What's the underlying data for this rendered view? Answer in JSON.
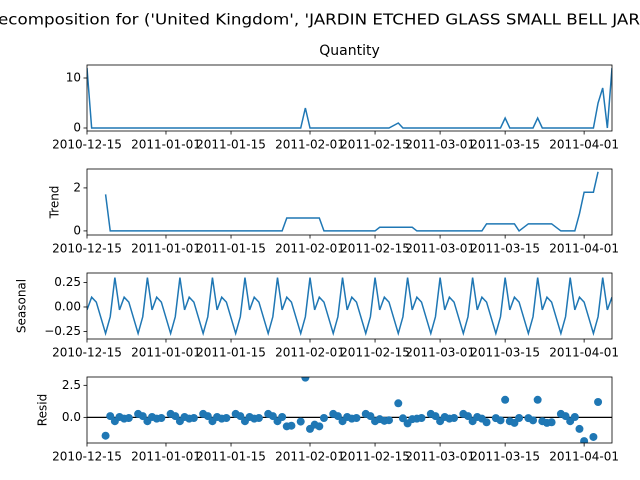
{
  "title": "ecomposition for ('United Kingdom', 'JARDIN ETCHED GLASS SMALL BELL JAR",
  "chart_data": [
    {
      "type": "line",
      "title": "Quantity",
      "color": "#1f77b4",
      "x": [
        "2010-12-15",
        "2010-12-16",
        "2010-12-17",
        "2010-12-19",
        "2010-12-20",
        "2010-12-21",
        "2010-12-22",
        "2010-12-23",
        "2010-12-24",
        "2010-12-26",
        "2010-12-27",
        "2010-12-28",
        "2010-12-29",
        "2010-12-30",
        "2010-12-31",
        "2011-01-02",
        "2011-01-03",
        "2011-01-04",
        "2011-01-05",
        "2011-01-06",
        "2011-01-07",
        "2011-01-09",
        "2011-01-10",
        "2011-01-11",
        "2011-01-12",
        "2011-01-13",
        "2011-01-14",
        "2011-01-16",
        "2011-01-17",
        "2011-01-18",
        "2011-01-19",
        "2011-01-20",
        "2011-01-21",
        "2011-01-23",
        "2011-01-24",
        "2011-01-25",
        "2011-01-26",
        "2011-01-27",
        "2011-01-28",
        "2011-01-30",
        "2011-01-31",
        "2011-02-01",
        "2011-02-02",
        "2011-02-03",
        "2011-02-04",
        "2011-02-06",
        "2011-02-07",
        "2011-02-08",
        "2011-02-09",
        "2011-02-10",
        "2011-02-11",
        "2011-02-13",
        "2011-02-14",
        "2011-02-15",
        "2011-02-16",
        "2011-02-17",
        "2011-02-18",
        "2011-02-20",
        "2011-02-21",
        "2011-02-22",
        "2011-02-23",
        "2011-02-24",
        "2011-02-25",
        "2011-02-27",
        "2011-02-28",
        "2011-03-01",
        "2011-03-02",
        "2011-03-03",
        "2011-03-04",
        "2011-03-06",
        "2011-03-07",
        "2011-03-08",
        "2011-03-09",
        "2011-03-10",
        "2011-03-11",
        "2011-03-13",
        "2011-03-14",
        "2011-03-15",
        "2011-03-16",
        "2011-03-17",
        "2011-03-18",
        "2011-03-20",
        "2011-03-21",
        "2011-03-22",
        "2011-03-23",
        "2011-03-24",
        "2011-03-25",
        "2011-03-27",
        "2011-03-28",
        "2011-03-29",
        "2011-03-30",
        "2011-03-31",
        "2011-04-01",
        "2011-04-03",
        "2011-04-04",
        "2011-04-05",
        "2011-04-06",
        "2011-04-07"
      ],
      "values": [
        12,
        0,
        0,
        0,
        0,
        0,
        0,
        0,
        0,
        0,
        0,
        0,
        0,
        0,
        0,
        0,
        0,
        0,
        0,
        0,
        0,
        0,
        0,
        0,
        0,
        0,
        0,
        0,
        0,
        0,
        0,
        0,
        0,
        0,
        0,
        0,
        0,
        0,
        0,
        0,
        4,
        0,
        0,
        0,
        0,
        0,
        0,
        0,
        0,
        0,
        0,
        0,
        0,
        0,
        0,
        0,
        0,
        1,
        0,
        0,
        0,
        0,
        0,
        0,
        0,
        0,
        0,
        0,
        0,
        0,
        0,
        0,
        0,
        0,
        0,
        0,
        0,
        2,
        0,
        0,
        0,
        0,
        0,
        2,
        0,
        0,
        0,
        0,
        0,
        0,
        0,
        0,
        0,
        0,
        5,
        8,
        0,
        12
      ],
      "xlim": [
        "2010-12-15",
        "2011-04-07"
      ],
      "xticks": [
        "2010-12-15",
        "2011-01-01",
        "2011-01-15",
        "2011-02-01",
        "2011-02-15",
        "2011-03-01",
        "2011-03-15",
        "2011-04-01"
      ],
      "ylim": [
        -0.6,
        12.6
      ],
      "yticks": [
        0,
        10
      ]
    },
    {
      "type": "line",
      "ylabel": "Trend",
      "color": "#1f77b4",
      "x": [
        "2010-12-15",
        "2010-12-16",
        "2010-12-17",
        "2010-12-19",
        "2010-12-20",
        "2010-12-21",
        "2010-12-22",
        "2010-12-23",
        "2010-12-24",
        "2010-12-26",
        "2010-12-27",
        "2010-12-28",
        "2010-12-29",
        "2010-12-30",
        "2010-12-31",
        "2011-01-02",
        "2011-01-03",
        "2011-01-04",
        "2011-01-05",
        "2011-01-06",
        "2011-01-07",
        "2011-01-09",
        "2011-01-10",
        "2011-01-11",
        "2011-01-12",
        "2011-01-13",
        "2011-01-14",
        "2011-01-16",
        "2011-01-17",
        "2011-01-18",
        "2011-01-19",
        "2011-01-20",
        "2011-01-21",
        "2011-01-23",
        "2011-01-24",
        "2011-01-25",
        "2011-01-26",
        "2011-01-27",
        "2011-01-28",
        "2011-01-30",
        "2011-01-31",
        "2011-02-01",
        "2011-02-02",
        "2011-02-03",
        "2011-02-04",
        "2011-02-06",
        "2011-02-07",
        "2011-02-08",
        "2011-02-09",
        "2011-02-10",
        "2011-02-11",
        "2011-02-13",
        "2011-02-14",
        "2011-02-15",
        "2011-02-16",
        "2011-02-17",
        "2011-02-18",
        "2011-02-20",
        "2011-02-21",
        "2011-02-22",
        "2011-02-23",
        "2011-02-24",
        "2011-02-25",
        "2011-02-27",
        "2011-02-28",
        "2011-03-01",
        "2011-03-02",
        "2011-03-03",
        "2011-03-04",
        "2011-03-06",
        "2011-03-07",
        "2011-03-08",
        "2011-03-09",
        "2011-03-10",
        "2011-03-11",
        "2011-03-13",
        "2011-03-14",
        "2011-03-15",
        "2011-03-16",
        "2011-03-17",
        "2011-03-18",
        "2011-03-20",
        "2011-03-21",
        "2011-03-22",
        "2011-03-23",
        "2011-03-24",
        "2011-03-25",
        "2011-03-27",
        "2011-03-28",
        "2011-03-29",
        "2011-03-30",
        "2011-03-31",
        "2011-04-01",
        "2011-04-03",
        "2011-04-04",
        "2011-04-05",
        "2011-04-06",
        "2011-04-07"
      ],
      "values": [
        null,
        null,
        null,
        1.7,
        0,
        0,
        0,
        0,
        0,
        0,
        0,
        0,
        0,
        0,
        0,
        0,
        0,
        0,
        0,
        0,
        0,
        0,
        0,
        0,
        0,
        0,
        0,
        0,
        0,
        0,
        0,
        0,
        0,
        0,
        0,
        0,
        0,
        0.6,
        0.6,
        0.6,
        0.6,
        0.6,
        0.6,
        0.6,
        0,
        0,
        0,
        0,
        0,
        0,
        0,
        0,
        0,
        0,
        0.17,
        0.17,
        0.17,
        0.17,
        0.17,
        0.17,
        0.17,
        0,
        0,
        0,
        0,
        0,
        0,
        0,
        0,
        0,
        0,
        0,
        0,
        0,
        0.33,
        0.33,
        0.33,
        0.33,
        0.33,
        0.33,
        0,
        0.33,
        0.33,
        0.33,
        0.33,
        0.33,
        0.33,
        0,
        0,
        0,
        0,
        0.8,
        1.8,
        1.8,
        2.75,
        null,
        null,
        null
      ],
      "xlim": [
        "2010-12-15",
        "2011-04-07"
      ],
      "xticks": [
        "2010-12-15",
        "2011-01-01",
        "2011-01-15",
        "2011-02-01",
        "2011-02-15",
        "2011-03-01",
        "2011-03-15",
        "2011-04-01"
      ],
      "ylim": [
        -0.19,
        2.88
      ],
      "yticks": [
        0,
        2
      ]
    },
    {
      "type": "line",
      "ylabel": "Seasonal",
      "color": "#1f77b4",
      "x": [
        "2010-12-15",
        "2010-12-16",
        "2010-12-17",
        "2010-12-19",
        "2010-12-20",
        "2010-12-21",
        "2010-12-22",
        "2010-12-23",
        "2010-12-24",
        "2010-12-26",
        "2010-12-27",
        "2010-12-28",
        "2010-12-29",
        "2010-12-30",
        "2010-12-31",
        "2011-01-02",
        "2011-01-03",
        "2011-01-04",
        "2011-01-05",
        "2011-01-06",
        "2011-01-07",
        "2011-01-09",
        "2011-01-10",
        "2011-01-11",
        "2011-01-12",
        "2011-01-13",
        "2011-01-14",
        "2011-01-16",
        "2011-01-17",
        "2011-01-18",
        "2011-01-19",
        "2011-01-20",
        "2011-01-21",
        "2011-01-23",
        "2011-01-24",
        "2011-01-25",
        "2011-01-26",
        "2011-01-27",
        "2011-01-28",
        "2011-01-30",
        "2011-01-31",
        "2011-02-01",
        "2011-02-02",
        "2011-02-03",
        "2011-02-04",
        "2011-02-06",
        "2011-02-07",
        "2011-02-08",
        "2011-02-09",
        "2011-02-10",
        "2011-02-11",
        "2011-02-13",
        "2011-02-14",
        "2011-02-15",
        "2011-02-16",
        "2011-02-17",
        "2011-02-18",
        "2011-02-20",
        "2011-02-21",
        "2011-02-22",
        "2011-02-23",
        "2011-02-24",
        "2011-02-25",
        "2011-02-27",
        "2011-02-28",
        "2011-03-01",
        "2011-03-02",
        "2011-03-03",
        "2011-03-04",
        "2011-03-06",
        "2011-03-07",
        "2011-03-08",
        "2011-03-09",
        "2011-03-10",
        "2011-03-11",
        "2011-03-13",
        "2011-03-14",
        "2011-03-15",
        "2011-03-16",
        "2011-03-17",
        "2011-03-18",
        "2011-03-20",
        "2011-03-21",
        "2011-03-22",
        "2011-03-23",
        "2011-03-24",
        "2011-03-25",
        "2011-03-27",
        "2011-03-28",
        "2011-03-29",
        "2011-03-30",
        "2011-03-31",
        "2011-04-01",
        "2011-04-03",
        "2011-04-04",
        "2011-04-05",
        "2011-04-06",
        "2011-04-07"
      ],
      "values": [
        -0.03,
        0.1,
        0.05,
        -0.27,
        -0.1,
        0.3,
        -0.03,
        0.1,
        0.05,
        -0.27,
        -0.1,
        0.3,
        -0.03,
        0.1,
        0.05,
        -0.27,
        -0.1,
        0.3,
        -0.03,
        0.1,
        0.05,
        -0.27,
        -0.1,
        0.3,
        -0.03,
        0.1,
        0.05,
        -0.27,
        -0.1,
        0.3,
        -0.03,
        0.1,
        0.05,
        -0.27,
        -0.1,
        0.3,
        -0.03,
        0.1,
        0.05,
        -0.27,
        -0.1,
        0.3,
        -0.03,
        0.1,
        0.05,
        -0.27,
        -0.1,
        0.3,
        -0.03,
        0.1,
        0.05,
        -0.27,
        -0.1,
        0.3,
        -0.03,
        0.1,
        0.05,
        -0.27,
        -0.1,
        0.3,
        -0.03,
        0.1,
        0.05,
        -0.27,
        -0.1,
        0.3,
        -0.03,
        0.1,
        0.05,
        -0.27,
        -0.1,
        0.3,
        -0.03,
        0.1,
        0.05,
        -0.27,
        -0.1,
        0.3,
        -0.03,
        0.1,
        0.05,
        -0.27,
        -0.1,
        0.3,
        -0.03,
        0.1,
        0.05,
        -0.27,
        -0.1,
        0.3,
        -0.03,
        0.1,
        0.05,
        -0.27,
        -0.1,
        0.3,
        -0.03,
        0.1
      ],
      "xlim": [
        "2010-12-15",
        "2011-04-07"
      ],
      "xticks": [
        "2010-12-15",
        "2011-01-01",
        "2011-01-15",
        "2011-02-01",
        "2011-02-15",
        "2011-03-01",
        "2011-03-15",
        "2011-04-01"
      ],
      "ylim": [
        -0.327,
        0.347
      ],
      "yticks": [
        {
          "value": 0.25,
          "label": "0.25"
        },
        {
          "value": 0,
          "label": "0.00"
        },
        {
          "value": -0.25,
          "label": "−0.25"
        }
      ]
    },
    {
      "type": "scatter",
      "ylabel": "Resid",
      "color": "#1f77b4",
      "x": [
        "2010-12-15",
        "2010-12-16",
        "2010-12-17",
        "2010-12-19",
        "2010-12-20",
        "2010-12-21",
        "2010-12-22",
        "2010-12-23",
        "2010-12-24",
        "2010-12-26",
        "2010-12-27",
        "2010-12-28",
        "2010-12-29",
        "2010-12-30",
        "2010-12-31",
        "2011-01-02",
        "2011-01-03",
        "2011-01-04",
        "2011-01-05",
        "2011-01-06",
        "2011-01-07",
        "2011-01-09",
        "2011-01-10",
        "2011-01-11",
        "2011-01-12",
        "2011-01-13",
        "2011-01-14",
        "2011-01-16",
        "2011-01-17",
        "2011-01-18",
        "2011-01-19",
        "2011-01-20",
        "2011-01-21",
        "2011-01-23",
        "2011-01-24",
        "2011-01-25",
        "2011-01-26",
        "2011-01-27",
        "2011-01-28",
        "2011-01-30",
        "2011-01-31",
        "2011-02-01",
        "2011-02-02",
        "2011-02-03",
        "2011-02-04",
        "2011-02-06",
        "2011-02-07",
        "2011-02-08",
        "2011-02-09",
        "2011-02-10",
        "2011-02-11",
        "2011-02-13",
        "2011-02-14",
        "2011-02-15",
        "2011-02-16",
        "2011-02-17",
        "2011-02-18",
        "2011-02-20",
        "2011-02-21",
        "2011-02-22",
        "2011-02-23",
        "2011-02-24",
        "2011-02-25",
        "2011-02-27",
        "2011-02-28",
        "2011-03-01",
        "2011-03-02",
        "2011-03-03",
        "2011-03-04",
        "2011-03-06",
        "2011-03-07",
        "2011-03-08",
        "2011-03-09",
        "2011-03-10",
        "2011-03-11",
        "2011-03-13",
        "2011-03-14",
        "2011-03-15",
        "2011-03-16",
        "2011-03-17",
        "2011-03-18",
        "2011-03-20",
        "2011-03-21",
        "2011-03-22",
        "2011-03-23",
        "2011-03-24",
        "2011-03-25",
        "2011-03-27",
        "2011-03-28",
        "2011-03-29",
        "2011-03-30",
        "2011-03-31",
        "2011-04-01",
        "2011-04-03",
        "2011-04-04",
        "2011-04-05",
        "2011-04-06",
        "2011-04-07"
      ],
      "values": [
        null,
        null,
        null,
        -1.43,
        0.1,
        -0.3,
        0.03,
        -0.1,
        -0.05,
        0.27,
        0.1,
        -0.3,
        0.03,
        -0.1,
        -0.05,
        0.27,
        0.1,
        -0.3,
        0.03,
        -0.1,
        -0.05,
        0.27,
        0.1,
        -0.3,
        0.03,
        -0.1,
        -0.05,
        0.27,
        0.1,
        -0.3,
        0.03,
        -0.1,
        -0.05,
        0.27,
        0.1,
        -0.3,
        0.03,
        -0.7,
        -0.65,
        -0.33,
        3.1,
        -0.9,
        -0.57,
        -0.7,
        -0.05,
        0.27,
        0.1,
        -0.3,
        0.03,
        -0.1,
        -0.05,
        0.27,
        0.1,
        -0.3,
        -0.14,
        -0.27,
        -0.22,
        1.1,
        -0.07,
        -0.47,
        -0.14,
        -0.1,
        -0.05,
        0.27,
        0.1,
        -0.3,
        0.03,
        -0.1,
        -0.05,
        0.27,
        0.1,
        -0.3,
        0.03,
        -0.1,
        -0.38,
        -0.06,
        -0.23,
        1.37,
        -0.3,
        -0.43,
        -0.05,
        -0.06,
        -0.23,
        1.37,
        -0.3,
        -0.43,
        -0.38,
        0.27,
        0.1,
        -0.3,
        0.03,
        -0.9,
        -1.85,
        -1.53,
        1.2,
        null,
        null,
        null
      ],
      "xlim": [
        "2010-12-15",
        "2011-04-07"
      ],
      "xticks": [
        "2010-12-15",
        "2011-01-01",
        "2011-01-15",
        "2011-02-01",
        "2011-02-15",
        "2011-03-01",
        "2011-03-15",
        "2011-04-01"
      ],
      "ylim": [
        -2.0,
        3.15
      ],
      "yticks": [
        {
          "value": 0,
          "label": "0.0"
        },
        {
          "value": 2.5,
          "label": "2.5"
        }
      ]
    }
  ]
}
